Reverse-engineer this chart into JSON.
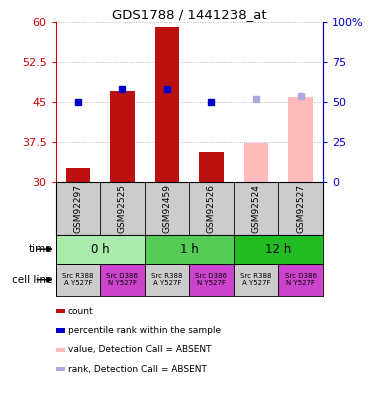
{
  "title": "GDS1788 / 1441238_at",
  "samples": [
    "GSM92297",
    "GSM92525",
    "GSM92459",
    "GSM92526",
    "GSM92524",
    "GSM92527"
  ],
  "counts": [
    32.5,
    47.0,
    59.2,
    35.5,
    null,
    null
  ],
  "counts_absent": [
    null,
    null,
    null,
    null,
    37.2,
    46.0
  ],
  "ranks": [
    45.0,
    47.5,
    47.5,
    45.0,
    null,
    null
  ],
  "ranks_absent": [
    null,
    null,
    null,
    null,
    45.5,
    46.2
  ],
  "ylim": [
    30,
    60
  ],
  "yticks": [
    30,
    37.5,
    45,
    52.5,
    60
  ],
  "y2lim": [
    0,
    100
  ],
  "y2ticks": [
    0,
    25,
    50,
    75,
    100
  ],
  "y2labels": [
    "0",
    "25",
    "50",
    "75",
    "100%"
  ],
  "time_groups": [
    {
      "label": "0 h",
      "cols": [
        0,
        1
      ],
      "color": "#aaeaaa"
    },
    {
      "label": "1 h",
      "cols": [
        2,
        3
      ],
      "color": "#55cc55"
    },
    {
      "label": "12 h",
      "cols": [
        4,
        5
      ],
      "color": "#22bb22"
    }
  ],
  "cell_lines": [
    {
      "label": "Src R388\nA Y527F",
      "bg": "#cccccc"
    },
    {
      "label": "Src D386\nN Y527F",
      "bg": "#cc44cc"
    },
    {
      "label": "Src R388\nA Y527F",
      "bg": "#cccccc"
    },
    {
      "label": "Src D386\nN Y527F",
      "bg": "#cc44cc"
    },
    {
      "label": "Src R388\nA Y527F",
      "bg": "#cccccc"
    },
    {
      "label": "Src D386\nN Y527F",
      "bg": "#cc44cc"
    }
  ],
  "bar_color_present": "#bb1111",
  "bar_color_absent": "#ffbbbb",
  "rank_color_present": "#0000cc",
  "rank_color_absent": "#aaaadd",
  "bar_width": 0.55,
  "rank_marker_size": 5,
  "grid_color": "#aaaaaa",
  "sample_bg": "#cccccc",
  "left_color": "#cc0000",
  "right_color": "#0000cc",
  "legend_items": [
    {
      "color": "#bb1111",
      "label": "count"
    },
    {
      "color": "#0000cc",
      "label": "percentile rank within the sample"
    },
    {
      "color": "#ffbbbb",
      "label": "value, Detection Call = ABSENT"
    },
    {
      "color": "#aaaadd",
      "label": "rank, Detection Call = ABSENT"
    }
  ]
}
